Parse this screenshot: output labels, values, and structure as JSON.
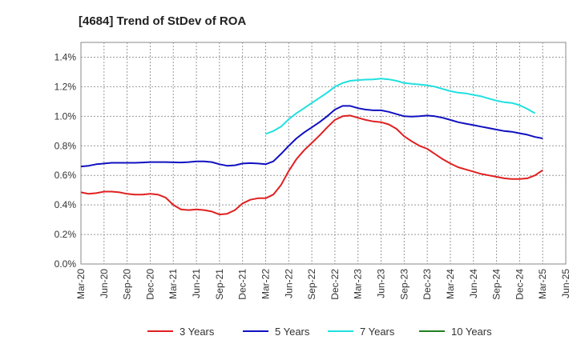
{
  "chart_data": {
    "type": "line",
    "title": "[4684]  Trend of StDev of ROA",
    "xlabel": "",
    "ylabel": "",
    "x_ticks": [
      "Mar-20",
      "Jun-20",
      "Sep-20",
      "Dec-20",
      "Mar-21",
      "Jun-21",
      "Sep-21",
      "Dec-21",
      "Mar-22",
      "Jun-22",
      "Sep-22",
      "Dec-22",
      "Mar-23",
      "Jun-23",
      "Sep-23",
      "Dec-23",
      "Mar-24",
      "Jun-24",
      "Sep-24",
      "Dec-24",
      "Mar-25",
      "Jun-25"
    ],
    "y_ticks": [
      "0.0%",
      "0.2%",
      "0.4%",
      "0.6%",
      "0.8%",
      "1.0%",
      "1.2%",
      "1.4%"
    ],
    "ylim": [
      0,
      1.5
    ],
    "y_unit": "%",
    "grid": true,
    "legend_position": "bottom",
    "series": [
      {
        "name": "3 Years",
        "color": "#e02020",
        "start_index": 0,
        "values": [
          0.485,
          0.475,
          0.48,
          0.49,
          0.49,
          0.485,
          0.475,
          0.47,
          0.47,
          0.475,
          0.47,
          0.45,
          0.4,
          0.37,
          0.365,
          0.37,
          0.365,
          0.355,
          0.335,
          0.34,
          0.365,
          0.41,
          0.435,
          0.445,
          0.445,
          0.47,
          0.535,
          0.63,
          0.71,
          0.77,
          0.82,
          0.87,
          0.925,
          0.975,
          1.0,
          1.005,
          0.99,
          0.975,
          0.965,
          0.96,
          0.945,
          0.915,
          0.865,
          0.83,
          0.8,
          0.78,
          0.745,
          0.71,
          0.68,
          0.655,
          0.64,
          0.625,
          0.61,
          0.6,
          0.59,
          0.58,
          0.575,
          0.575,
          0.58,
          0.6,
          0.635
        ]
      },
      {
        "name": "5 Years",
        "color": "#1010c0",
        "start_index": 0,
        "values": [
          0.66,
          0.665,
          0.675,
          0.68,
          0.685,
          0.685,
          0.685,
          0.685,
          0.687,
          0.69,
          0.69,
          0.69,
          0.688,
          0.687,
          0.69,
          0.695,
          0.695,
          0.69,
          0.675,
          0.665,
          0.668,
          0.68,
          0.683,
          0.68,
          0.675,
          0.695,
          0.745,
          0.8,
          0.85,
          0.89,
          0.925,
          0.96,
          1.0,
          1.045,
          1.07,
          1.07,
          1.055,
          1.045,
          1.04,
          1.04,
          1.03,
          1.015,
          1.0,
          0.998,
          1.0,
          1.005,
          1.0,
          0.99,
          0.975,
          0.96,
          0.95,
          0.94,
          0.93,
          0.92,
          0.91,
          0.9,
          0.895,
          0.885,
          0.875,
          0.86,
          0.85
        ]
      },
      {
        "name": "7 Years",
        "color": "#20e0e0",
        "start_index": 24,
        "values": [
          0.88,
          0.9,
          0.93,
          0.98,
          1.02,
          1.055,
          1.09,
          1.125,
          1.16,
          1.2,
          1.225,
          1.24,
          1.245,
          1.248,
          1.25,
          1.255,
          1.25,
          1.24,
          1.225,
          1.22,
          1.215,
          1.21,
          1.2,
          1.185,
          1.17,
          1.16,
          1.155,
          1.145,
          1.135,
          1.12,
          1.105,
          1.095,
          1.09,
          1.075,
          1.05,
          1.02
        ]
      },
      {
        "name": "10 Years",
        "color": "#208020",
        "start_index": 0,
        "values": []
      }
    ]
  }
}
